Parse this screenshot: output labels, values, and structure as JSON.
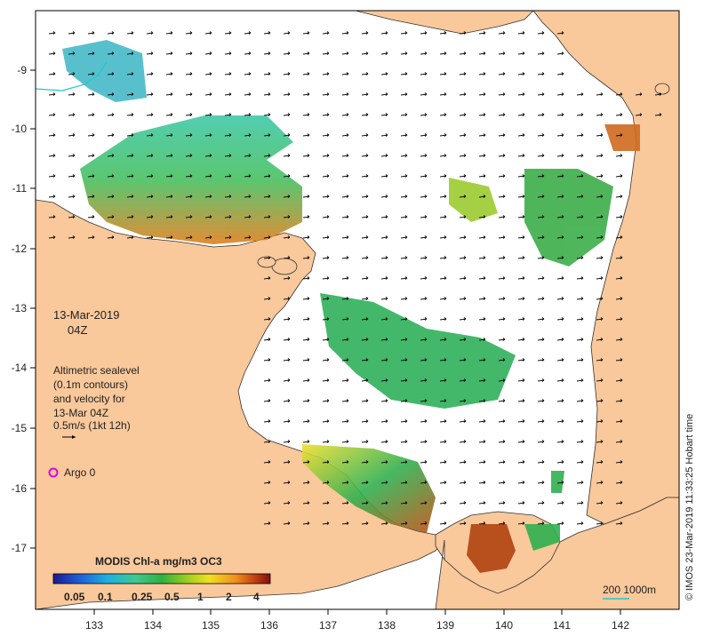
{
  "map": {
    "date": "13-Mar-2019",
    "time": "04Z",
    "legend_lines": [
      "Altimetric sealevel",
      "(0.1m contours)",
      "and velocity for",
      "13-Mar 04Z",
      "0.5m/s (1kt 12h)"
    ],
    "argo_label": "Argo 0",
    "credit": "© IMOS 23-Mar-2019 11:33:25 Hobart time",
    "scale_label": "200  1000m",
    "lon_ticks": [
      "133",
      "134",
      "135",
      "136",
      "137",
      "138",
      "139",
      "140",
      "141",
      "142"
    ],
    "lat_ticks": [
      "-9",
      "-10",
      "-11",
      "-12",
      "-13",
      "-14",
      "-15",
      "-16",
      "-17"
    ],
    "colorbar": {
      "title": "MODIS Chl-a mg/m3 OC3",
      "labels": [
        "0.05",
        "0.1",
        "0.25",
        "0.5",
        "1",
        "2",
        "4"
      ]
    },
    "colors": {
      "land": "#f9c89b",
      "ocean": "#ffffff",
      "chl_low": "#1a7fd0",
      "chl_mid": "#2db35a",
      "chl_high": "#e07a20",
      "argo": "#e000e0"
    }
  }
}
